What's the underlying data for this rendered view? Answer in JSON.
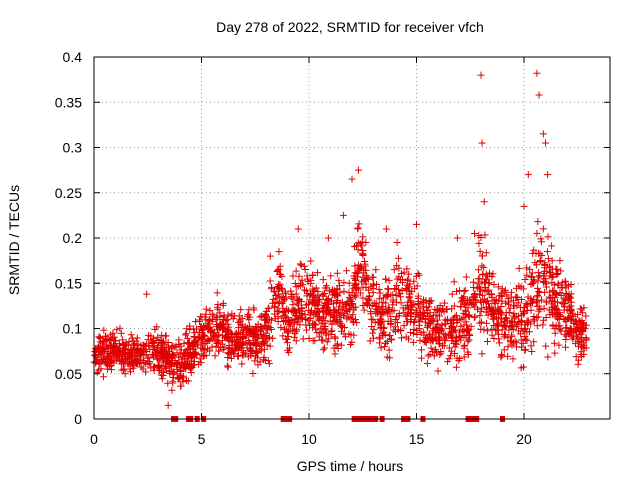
{
  "chart_data": {
    "type": "scatter",
    "title": "Day 278 of 2022, SRMTID for receiver vfch",
    "xlabel": "GPS time / hours",
    "ylabel": "SRMTID / TECUs",
    "xlim": [
      0,
      24
    ],
    "ylim": [
      0,
      0.4
    ],
    "grid": true,
    "xticks": [
      0,
      5,
      10,
      15,
      20
    ],
    "xtick_labels": [
      "0",
      "5",
      "10",
      "15",
      "20"
    ],
    "yticks": [
      0,
      0.05,
      0.1,
      0.15,
      0.2,
      0.25,
      0.3,
      0.35,
      0.4
    ],
    "ytick_labels": [
      "0",
      "0.05",
      "0.1",
      "0.15",
      "0.2",
      "0.25",
      "0.3",
      "0.35",
      "0.4"
    ],
    "series": [
      {
        "name": "SRMTID",
        "color": "#e00000",
        "marker": "plus",
        "hours": [
          0.0,
          0.5,
          1.0,
          1.5,
          2.0,
          2.5,
          3.0,
          3.5,
          3.9,
          4.3,
          4.8,
          5.2,
          5.7,
          6.2,
          6.7,
          7.2,
          7.7,
          8.2,
          8.6,
          9.0,
          9.5,
          10.0,
          10.5,
          11.0,
          11.5,
          12.0,
          12.3,
          13.0,
          13.5,
          14.0,
          14.5,
          15.0,
          15.5,
          16.0,
          16.5,
          17.0,
          17.5,
          18.0,
          18.4,
          19.0,
          19.5,
          20.0,
          20.5,
          21.0,
          21.5,
          22.0,
          22.5,
          22.9
        ],
        "typical": [
          0.07,
          0.075,
          0.075,
          0.07,
          0.072,
          0.078,
          0.072,
          0.065,
          0.055,
          0.07,
          0.08,
          0.1,
          0.105,
          0.095,
          0.09,
          0.095,
          0.085,
          0.11,
          0.14,
          0.1,
          0.13,
          0.13,
          0.115,
          0.12,
          0.12,
          0.12,
          0.18,
          0.12,
          0.11,
          0.13,
          0.13,
          0.12,
          0.1,
          0.1,
          0.1,
          0.1,
          0.12,
          0.15,
          0.12,
          0.11,
          0.11,
          0.11,
          0.15,
          0.15,
          0.13,
          0.12,
          0.1,
          0.09
        ],
        "spread": [
          0.025,
          0.025,
          0.025,
          0.025,
          0.025,
          0.03,
          0.03,
          0.03,
          0.03,
          0.03,
          0.03,
          0.035,
          0.035,
          0.035,
          0.035,
          0.035,
          0.03,
          0.04,
          0.05,
          0.04,
          0.05,
          0.05,
          0.045,
          0.045,
          0.045,
          0.045,
          0.06,
          0.045,
          0.045,
          0.05,
          0.05,
          0.045,
          0.04,
          0.04,
          0.045,
          0.045,
          0.05,
          0.07,
          0.05,
          0.04,
          0.045,
          0.05,
          0.08,
          0.07,
          0.05,
          0.045,
          0.035,
          0.03
        ],
        "peaks": [
          [
            2.45,
            0.138
          ],
          [
            3.45,
            0.015
          ],
          [
            8.2,
            0.18
          ],
          [
            8.6,
            0.185
          ],
          [
            9.5,
            0.21
          ],
          [
            10.9,
            0.2
          ],
          [
            11.6,
            0.225
          ],
          [
            12.0,
            0.265
          ],
          [
            12.3,
            0.275
          ],
          [
            13.6,
            0.21
          ],
          [
            14.1,
            0.195
          ],
          [
            15.0,
            0.215
          ],
          [
            16.9,
            0.2
          ],
          [
            17.7,
            0.205
          ],
          [
            18.0,
            0.38
          ],
          [
            18.05,
            0.305
          ],
          [
            18.15,
            0.24
          ],
          [
            20.0,
            0.235
          ],
          [
            20.2,
            0.27
          ],
          [
            20.6,
            0.382
          ],
          [
            20.7,
            0.358
          ],
          [
            20.9,
            0.315
          ],
          [
            21.0,
            0.305
          ],
          [
            21.1,
            0.27
          ]
        ],
        "flag_hours": [
          3.7,
          3.8,
          4.4,
          4.5,
          4.8,
          5.1,
          8.8,
          8.9,
          9.0,
          9.1,
          12.1,
          12.2,
          12.3,
          12.4,
          12.5,
          12.6,
          12.7,
          12.8,
          12.9,
          13.0,
          13.1,
          13.4,
          14.4,
          14.5,
          14.6,
          15.3,
          17.4,
          17.5,
          17.6,
          17.7,
          17.8,
          19.0
        ]
      }
    ]
  }
}
